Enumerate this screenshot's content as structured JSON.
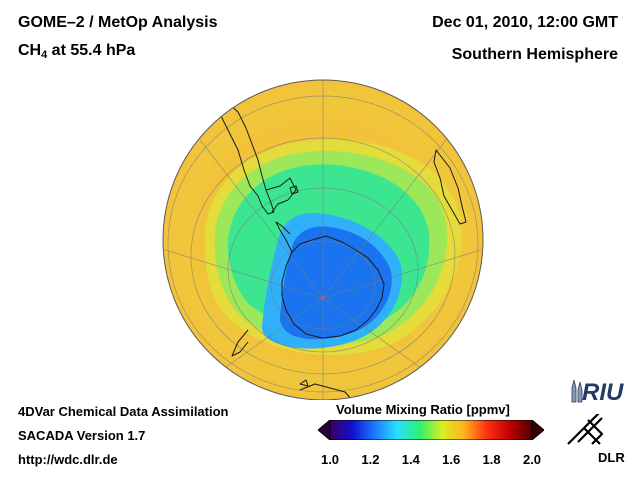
{
  "header": {
    "title_line1": "GOME–2 / MetOp Analysis",
    "species": "CH",
    "species_sub": "4",
    "species_rest": " at 55.4 hPa",
    "datetime": "Dec 01, 2010, 12:00 GMT",
    "hemisphere": "Southern Hemisphere"
  },
  "footer": {
    "line1": "4DVar Chemical Data Assimilation",
    "line2": "SACADA Version 1.7",
    "line3": "http://wdc.dlr.de"
  },
  "colorbar": {
    "title": "Volume Mixing Ratio [ppmv]",
    "ticks": [
      "1.0",
      "1.2",
      "1.4",
      "1.6",
      "1.8",
      "2.0"
    ],
    "min": 1.0,
    "max": 2.0,
    "colors": [
      "#3a0060",
      "#1010d0",
      "#1a7cff",
      "#28e0ff",
      "#30f070",
      "#d8f020",
      "#ffb020",
      "#ff3010",
      "#c00000",
      "#500000"
    ]
  },
  "logos": {
    "riu": "RIU",
    "dlr": "DLR"
  },
  "map": {
    "projection": "orthographic, south polar view",
    "field_colors": {
      "background": "#f2c23a",
      "outer_ring": "#e4dc3a",
      "ring": "#9ce85a",
      "mid": "#3ce690",
      "vortex_edge": "#30b0f8",
      "vortex_core": "#1a74f0"
    }
  }
}
